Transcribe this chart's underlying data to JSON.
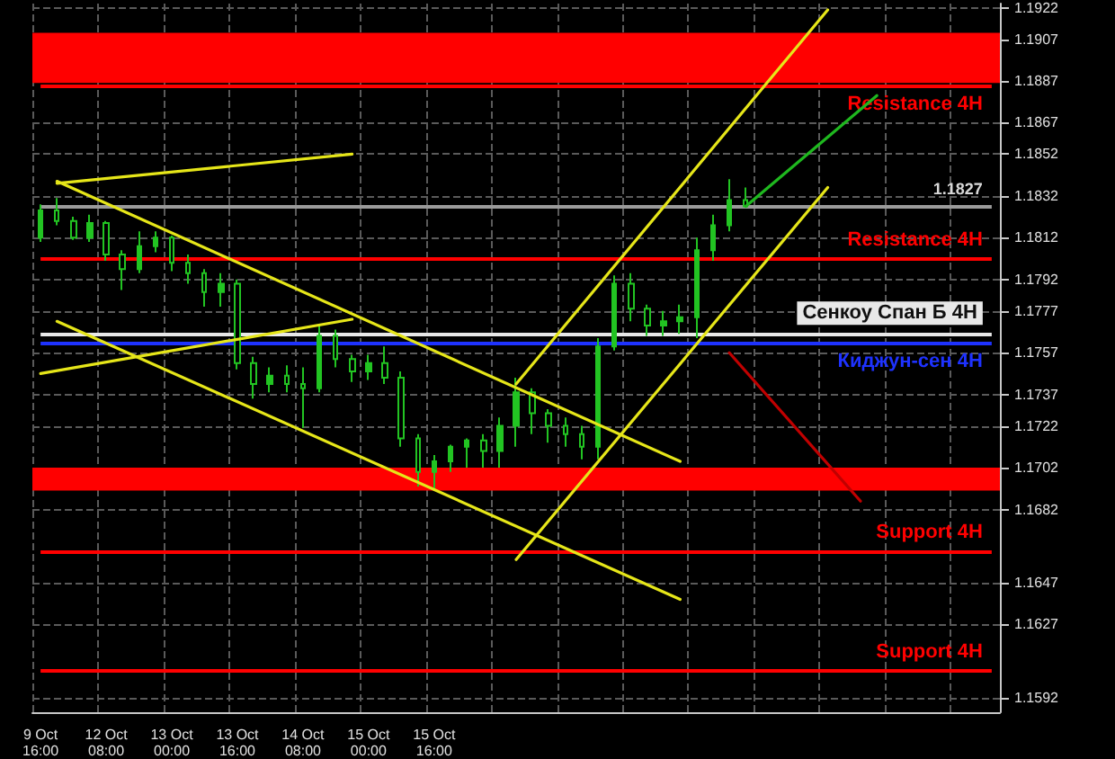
{
  "chart_data": {
    "type": "candlestick",
    "color": "#22c422",
    "categories": [
      "9 Oct 16:00",
      null,
      null,
      null,
      "12 Oct 08:00",
      null,
      null,
      null,
      "13 Oct 00:00",
      null,
      null,
      null,
      "13 Oct 16:00",
      null,
      null,
      null,
      "14 Oct 08:00",
      null,
      null,
      null,
      "15 Oct 00:00",
      null,
      null,
      null,
      "15 Oct 16:00",
      null,
      null,
      null,
      null,
      null,
      null,
      null,
      null,
      null,
      null,
      null,
      null,
      null,
      null,
      null,
      null,
      null,
      null,
      null,
      null,
      null,
      null,
      null,
      null,
      null,
      null,
      null,
      null,
      null,
      null,
      null,
      null,
      null,
      null
    ],
    "ohlc": [
      [
        1.1812,
        1.1828,
        1.181,
        1.1825
      ],
      [
        1.1825,
        1.1831,
        1.1818,
        1.182
      ],
      [
        1.182,
        1.1822,
        1.1811,
        1.1812
      ],
      [
        1.1812,
        1.1823,
        1.181,
        1.1819
      ],
      [
        1.1819,
        1.182,
        1.1801,
        1.1804
      ],
      [
        1.1804,
        1.1806,
        1.1787,
        1.1797
      ],
      [
        1.1797,
        1.1815,
        1.1795,
        1.1808
      ],
      [
        1.1808,
        1.1815,
        1.1805,
        1.1812
      ],
      [
        1.1812,
        1.1813,
        1.1796,
        1.18
      ],
      [
        1.18,
        1.1804,
        1.179,
        1.1795
      ],
      [
        1.1795,
        1.1797,
        1.1779,
        1.1786
      ],
      [
        1.1786,
        1.1795,
        1.1779,
        1.179
      ],
      [
        1.179,
        1.1792,
        1.1749,
        1.1752
      ],
      [
        1.1752,
        1.1755,
        1.1735,
        1.1742
      ],
      [
        1.1742,
        1.175,
        1.1738,
        1.1746
      ],
      [
        1.1746,
        1.1751,
        1.1738,
        1.1742
      ],
      [
        1.1742,
        1.175,
        1.1721,
        1.174
      ],
      [
        1.174,
        1.177,
        1.1738,
        1.1765
      ],
      [
        1.1765,
        1.1768,
        1.175,
        1.1754
      ],
      [
        1.1754,
        1.1756,
        1.1743,
        1.1748
      ],
      [
        1.1748,
        1.1756,
        1.1744,
        1.1752
      ],
      [
        1.1752,
        1.176,
        1.1742,
        1.1745
      ],
      [
        1.1745,
        1.1748,
        1.1712,
        1.1716
      ],
      [
        1.1716,
        1.1718,
        1.1693,
        1.17
      ],
      [
        1.17,
        1.1708,
        1.1692,
        1.1705
      ],
      [
        1.1705,
        1.1713,
        1.17,
        1.1712
      ],
      [
        1.1712,
        1.1716,
        1.1702,
        1.1715
      ],
      [
        1.1715,
        1.1718,
        1.1702,
        1.171
      ],
      [
        1.171,
        1.1726,
        1.1702,
        1.1722
      ],
      [
        1.1722,
        1.1745,
        1.1712,
        1.1738
      ],
      [
        1.1738,
        1.174,
        1.1718,
        1.1728
      ],
      [
        1.1728,
        1.173,
        1.1714,
        1.1722
      ],
      [
        1.1722,
        1.1726,
        1.1712,
        1.1718
      ],
      [
        1.1718,
        1.1722,
        1.1706,
        1.1712
      ],
      [
        1.1712,
        1.1764,
        1.1706,
        1.176
      ],
      [
        1.176,
        1.1794,
        1.1758,
        1.179
      ],
      [
        1.179,
        1.1795,
        1.1772,
        1.1778
      ],
      [
        1.1778,
        1.178,
        1.1765,
        1.177
      ],
      [
        1.177,
        1.1777,
        1.1765,
        1.1772
      ],
      [
        1.1772,
        1.178,
        1.1766,
        1.1774
      ],
      [
        1.1774,
        1.1812,
        1.1764,
        1.1806
      ],
      [
        1.1806,
        1.1823,
        1.1801,
        1.1818
      ],
      [
        1.1818,
        1.184,
        1.1815,
        1.183
      ],
      [
        1.183,
        1.1836,
        1.1827,
        1.1827
      ],
      null,
      null,
      null,
      null,
      null,
      null,
      null,
      null,
      null,
      null,
      null,
      null,
      null,
      null,
      null
    ],
    "series": [
      {
        "type": "line",
        "color": "#e6e619",
        "values": [
          null,
          1.1838,
          null,
          null,
          null,
          null,
          null,
          null,
          null,
          null,
          null,
          null,
          null,
          null,
          null,
          null,
          null,
          null,
          null,
          1.1852,
          null,
          null,
          null,
          null,
          null,
          null,
          null,
          null,
          null,
          null,
          null,
          null,
          null,
          null,
          null,
          null,
          null,
          null,
          null,
          null,
          null,
          null,
          null,
          null,
          null,
          null,
          null,
          null,
          null,
          null,
          null,
          null,
          null,
          null,
          null,
          null,
          null,
          null,
          null
        ]
      },
      {
        "type": "line",
        "color": "#e6e619",
        "values": [
          null,
          1.1839,
          null,
          null,
          null,
          null,
          null,
          null,
          null,
          null,
          null,
          null,
          null,
          null,
          null,
          null,
          null,
          null,
          null,
          null,
          null,
          null,
          null,
          null,
          null,
          null,
          null,
          null,
          null,
          null,
          null,
          null,
          null,
          null,
          null,
          null,
          null,
          null,
          null,
          1.1705,
          null,
          null,
          null,
          null,
          null,
          null,
          null,
          null,
          null,
          null,
          null,
          null,
          null,
          null,
          null,
          null,
          null,
          null,
          null
        ]
      },
      {
        "type": "line",
        "color": "#e6e619",
        "values": [
          null,
          1.1772,
          null,
          null,
          null,
          null,
          null,
          null,
          null,
          null,
          null,
          null,
          null,
          null,
          null,
          null,
          null,
          null,
          null,
          null,
          null,
          null,
          null,
          null,
          null,
          null,
          null,
          null,
          null,
          null,
          null,
          null,
          null,
          null,
          null,
          null,
          null,
          null,
          null,
          1.1639,
          null,
          null,
          null,
          null,
          null,
          null,
          null,
          null,
          null,
          null,
          null,
          null,
          null,
          null,
          null,
          null,
          null,
          null,
          null
        ]
      },
      {
        "type": "line",
        "color": "#e6e619",
        "values": [
          1.1747,
          null,
          null,
          null,
          null,
          null,
          null,
          null,
          null,
          null,
          null,
          null,
          null,
          null,
          null,
          null,
          null,
          null,
          null,
          1.1773,
          null,
          null,
          null,
          null,
          null,
          null,
          null,
          null,
          null,
          null,
          null,
          null,
          null,
          null,
          null,
          null,
          null,
          null,
          null,
          null,
          null,
          null,
          null,
          null,
          null,
          null,
          null,
          null,
          null,
          null,
          null,
          null,
          null,
          null,
          null,
          null,
          null,
          null,
          null
        ]
      },
      {
        "type": "line",
        "color": "#e6e619",
        "values": [
          null,
          null,
          null,
          null,
          null,
          null,
          null,
          null,
          null,
          null,
          null,
          null,
          null,
          null,
          null,
          null,
          null,
          null,
          null,
          null,
          null,
          null,
          null,
          null,
          null,
          null,
          null,
          null,
          null,
          1.1742,
          null,
          null,
          null,
          null,
          null,
          null,
          null,
          null,
          null,
          null,
          null,
          null,
          null,
          null,
          null,
          null,
          null,
          null,
          1.1921,
          null,
          null,
          null,
          null,
          null,
          null,
          null,
          null,
          null,
          null
        ]
      },
      {
        "type": "line",
        "color": "#e6e619",
        "values": [
          null,
          null,
          null,
          null,
          null,
          null,
          null,
          null,
          null,
          null,
          null,
          null,
          null,
          null,
          null,
          null,
          null,
          null,
          null,
          null,
          null,
          null,
          null,
          null,
          null,
          null,
          null,
          null,
          null,
          1.1658,
          null,
          null,
          null,
          null,
          null,
          null,
          null,
          null,
          null,
          null,
          null,
          null,
          null,
          null,
          null,
          null,
          null,
          null,
          1.1836,
          null,
          null,
          null,
          null,
          null,
          null,
          null,
          null,
          null,
          null
        ]
      },
      {
        "type": "line",
        "color": "#1fb81f",
        "values": [
          null,
          null,
          null,
          null,
          null,
          null,
          null,
          null,
          null,
          null,
          null,
          null,
          null,
          null,
          null,
          null,
          null,
          null,
          null,
          null,
          null,
          null,
          null,
          null,
          null,
          null,
          null,
          null,
          null,
          null,
          null,
          null,
          null,
          null,
          null,
          null,
          null,
          null,
          null,
          null,
          null,
          null,
          null,
          1.1827,
          null,
          null,
          null,
          null,
          null,
          null,
          null,
          1.188,
          null,
          null,
          null,
          null,
          null,
          null,
          null
        ]
      },
      {
        "type": "line",
        "color": "#c00000",
        "values": [
          null,
          null,
          null,
          null,
          null,
          null,
          null,
          null,
          null,
          null,
          null,
          null,
          null,
          null,
          null,
          null,
          null,
          null,
          null,
          null,
          null,
          null,
          null,
          null,
          null,
          null,
          null,
          null,
          null,
          null,
          null,
          null,
          null,
          null,
          null,
          null,
          null,
          null,
          null,
          null,
          null,
          null,
          1.1757,
          null,
          null,
          null,
          null,
          null,
          null,
          null,
          1.1686,
          null,
          null,
          null,
          null,
          null,
          null,
          null,
          null
        ]
      }
    ],
    "ylim": [
      1.1585,
      1.1924
    ],
    "yticks": [
      1.1922,
      1.1907,
      1.1887,
      1.1867,
      1.1852,
      1.1832,
      1.1812,
      1.1792,
      1.1777,
      1.1757,
      1.1737,
      1.1722,
      1.1702,
      1.1682,
      1.1647,
      1.1627,
      1.1592
    ],
    "ref_lines": [
      {
        "axis": "y",
        "value": 1.1885,
        "label": "Resistance 4H",
        "color": "#ff0000"
      },
      {
        "axis": "y",
        "value": 1.1827,
        "label": "1.1827",
        "color": "#9a9a9a"
      },
      {
        "axis": "y",
        "value": 1.1802,
        "label": "Resistance 4H",
        "color": "#ff0000"
      },
      {
        "axis": "y",
        "value": 1.1766,
        "label": "Сенкоу Спан Б 4H",
        "color": "#e8e8e8"
      },
      {
        "axis": "y",
        "value": 1.1762,
        "label": "Киджун-сен 4H",
        "color": "#1e32ff"
      },
      {
        "axis": "y",
        "value": 1.1662,
        "label": "Support 4H",
        "color": "#ff0000"
      },
      {
        "axis": "y",
        "value": 1.1605,
        "label": "Support 4H",
        "color": "#ff0000"
      }
    ],
    "bands": [
      {
        "axis": "y",
        "from": 1.1886,
        "to": 1.191,
        "color": "#ff0000"
      },
      {
        "axis": "y",
        "from": 1.1691,
        "to": 1.1702,
        "color": "#ff0000"
      }
    ],
    "grid": true,
    "line_style": "solid",
    "marker": "none"
  }
}
